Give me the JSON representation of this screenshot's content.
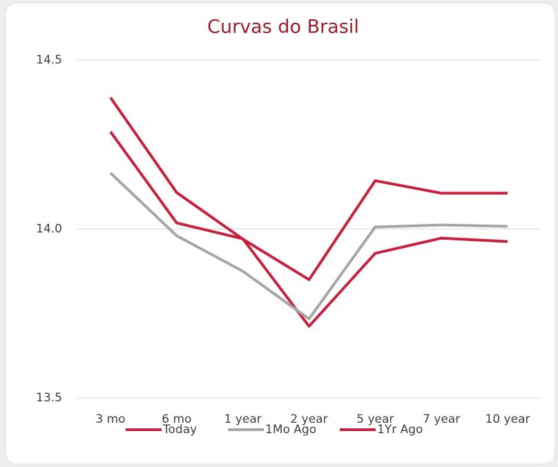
{
  "chart_data": {
    "type": "line",
    "title": "Curvas do Brasil",
    "categories": [
      "3 mo",
      "6 mo",
      "1 year",
      "2 year",
      "5 year",
      "7 year",
      "10 year"
    ],
    "series": [
      {
        "name": "Today",
        "color": "#c8203f",
        "values": [
          14.288,
          14.018,
          13.971,
          13.712,
          13.928,
          13.973,
          13.963
        ]
      },
      {
        "name": "1Mo Ago",
        "color": "#a6a6a6",
        "values": [
          14.166,
          13.98,
          13.875,
          13.734,
          14.006,
          14.012,
          14.008
        ]
      },
      {
        "name": "1Yr Ago",
        "color": "#c8203f",
        "values": [
          14.389,
          14.108,
          13.97,
          13.85,
          14.143,
          14.106,
          14.106
        ]
      }
    ],
    "ylim": [
      13.5,
      14.5
    ],
    "yticks": [
      13.5,
      {
        "value": 14,
        "label": "14.0"
      },
      14.5
    ],
    "grid": true,
    "legend": "bottom"
  }
}
